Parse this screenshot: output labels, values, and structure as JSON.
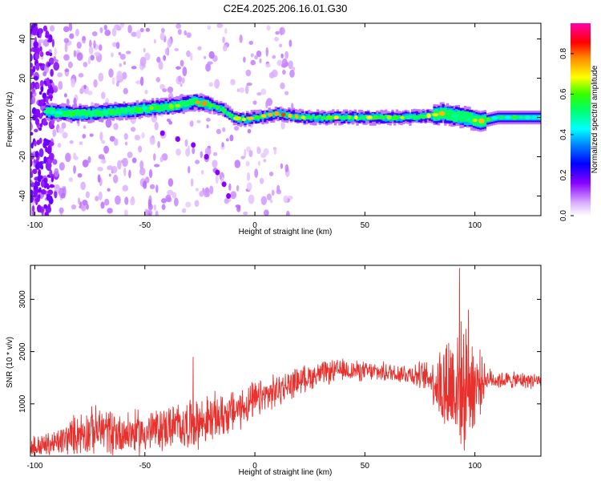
{
  "title": "C2E4.2025.206.16.01.G30",
  "chart_data": [
    {
      "type": "heatmap",
      "xlabel": "Height of straight line (km)",
      "ylabel": "Frequency (Hz)",
      "xlim": [
        -102,
        130
      ],
      "ylim": [
        -50,
        48
      ],
      "x_ticks": [
        -100,
        -50,
        0,
        50,
        100
      ],
      "y_ticks": [
        -40,
        -20,
        0,
        20,
        40
      ],
      "colorbar": {
        "label": "Normalized spectral amplitude",
        "range": [
          0,
          0.95
        ],
        "ticks": [
          0.0,
          0.2,
          0.4,
          0.6,
          0.8
        ]
      },
      "ridge_points": [
        {
          "x": -95,
          "y": 3,
          "amp": 0.55
        },
        {
          "x": -85,
          "y": 2,
          "amp": 0.6
        },
        {
          "x": -75,
          "y": 2,
          "amp": 0.55
        },
        {
          "x": -65,
          "y": 3,
          "amp": 0.6
        },
        {
          "x": -55,
          "y": 4,
          "amp": 0.6
        },
        {
          "x": -45,
          "y": 5,
          "amp": 0.65
        },
        {
          "x": -35,
          "y": 6,
          "amp": 0.7
        },
        {
          "x": -28,
          "y": 8,
          "amp": 0.75
        },
        {
          "x": -22,
          "y": 7,
          "amp": 0.8
        },
        {
          "x": -15,
          "y": 4,
          "amp": 0.7
        },
        {
          "x": -10,
          "y": 0,
          "amp": 0.6
        },
        {
          "x": -5,
          "y": -1,
          "amp": 0.85
        },
        {
          "x": 0,
          "y": 0,
          "amp": 0.8
        },
        {
          "x": 5,
          "y": 1,
          "amp": 0.85
        },
        {
          "x": 10,
          "y": 2,
          "amp": 0.9
        },
        {
          "x": 15,
          "y": 1,
          "amp": 0.8
        },
        {
          "x": 22,
          "y": 0,
          "amp": 0.75
        },
        {
          "x": 30,
          "y": 0,
          "amp": 0.7
        },
        {
          "x": 40,
          "y": 0,
          "amp": 0.75
        },
        {
          "x": 50,
          "y": 0,
          "amp": 0.7
        },
        {
          "x": 60,
          "y": 0,
          "amp": 0.7
        },
        {
          "x": 70,
          "y": 0,
          "amp": 0.7
        },
        {
          "x": 80,
          "y": 1,
          "amp": 0.7
        },
        {
          "x": 85,
          "y": 2,
          "amp": 0.8
        },
        {
          "x": 90,
          "y": 1,
          "amp": 0.65
        },
        {
          "x": 95,
          "y": 0,
          "amp": 0.6
        },
        {
          "x": 102,
          "y": -2,
          "amp": 0.8
        },
        {
          "x": 110,
          "y": 0,
          "amp": 0.6
        },
        {
          "x": 120,
          "y": 0,
          "amp": 0.6
        },
        {
          "x": 130,
          "y": 0,
          "amp": 0.55
        }
      ],
      "secondary_trace": [
        {
          "x": -42,
          "y": -8
        },
        {
          "x": -35,
          "y": -11
        },
        {
          "x": -28,
          "y": -14
        },
        {
          "x": -22,
          "y": -20
        },
        {
          "x": -17,
          "y": -28
        },
        {
          "x": -14,
          "y": -34
        },
        {
          "x": -12,
          "y": -40
        }
      ]
    },
    {
      "type": "line",
      "xlabel": "Height of straight line (km)",
      "ylabel": "SNR (10 * v/v)",
      "xlim": [
        -102,
        130
      ],
      "ylim": [
        0,
        3650
      ],
      "x_ticks": [
        -100,
        -50,
        0,
        50,
        100
      ],
      "y_ticks": [
        1000,
        2000,
        3000
      ],
      "line_color": "#e8302c",
      "envelope": [
        {
          "x": -102,
          "mean": 150,
          "amp": 200
        },
        {
          "x": -90,
          "mean": 250,
          "amp": 250
        },
        {
          "x": -80,
          "mean": 450,
          "amp": 400
        },
        {
          "x": -70,
          "mean": 500,
          "amp": 450
        },
        {
          "x": -60,
          "mean": 450,
          "amp": 400
        },
        {
          "x": -50,
          "mean": 450,
          "amp": 400
        },
        {
          "x": -40,
          "mean": 550,
          "amp": 400
        },
        {
          "x": -30,
          "mean": 600,
          "amp": 450
        },
        {
          "x": -20,
          "mean": 700,
          "amp": 450
        },
        {
          "x": -10,
          "mean": 850,
          "amp": 400
        },
        {
          "x": 0,
          "mean": 1050,
          "amp": 350
        },
        {
          "x": 10,
          "mean": 1250,
          "amp": 300
        },
        {
          "x": 20,
          "mean": 1450,
          "amp": 250
        },
        {
          "x": 30,
          "mean": 1580,
          "amp": 220
        },
        {
          "x": 40,
          "mean": 1650,
          "amp": 200
        },
        {
          "x": 50,
          "mean": 1620,
          "amp": 180
        },
        {
          "x": 60,
          "mean": 1600,
          "amp": 180
        },
        {
          "x": 70,
          "mean": 1580,
          "amp": 200
        },
        {
          "x": 80,
          "mean": 1500,
          "amp": 300
        },
        {
          "x": 85,
          "mean": 1300,
          "amp": 900
        },
        {
          "x": 90,
          "mean": 1400,
          "amp": 1200
        },
        {
          "x": 95,
          "mean": 1300,
          "amp": 1100
        },
        {
          "x": 100,
          "mean": 1350,
          "amp": 900
        },
        {
          "x": 105,
          "mean": 1480,
          "amp": 200
        },
        {
          "x": 115,
          "mean": 1450,
          "amp": 150
        },
        {
          "x": 130,
          "mean": 1450,
          "amp": 150
        }
      ],
      "peaks": [
        {
          "x": -28,
          "y": 1900
        },
        {
          "x": 93,
          "y": 3600
        },
        {
          "x": 97,
          "y": 2800
        }
      ]
    }
  ]
}
